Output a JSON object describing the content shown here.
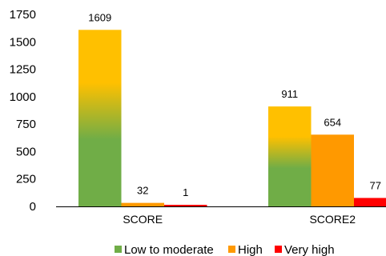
{
  "chart_data": {
    "type": "bar",
    "categories": [
      "SCORE",
      "SCORE2"
    ],
    "series": [
      {
        "name": "Low to moderate",
        "values": [
          1609,
          911
        ]
      },
      {
        "name": "High",
        "values": [
          32,
          654
        ]
      },
      {
        "name": "Very high",
        "values": [
          1,
          77
        ]
      }
    ],
    "data_labels": [
      [
        "1609",
        "911"
      ],
      [
        "32",
        "654"
      ],
      [
        "1",
        "77"
      ]
    ],
    "title": "",
    "xlabel": "",
    "ylabel": "",
    "ylim": [
      0,
      1750
    ],
    "yticks": [
      0,
      250,
      500,
      750,
      1000,
      1250,
      1500,
      1750
    ],
    "grid": false,
    "legend_position": "bottom"
  },
  "colors": {
    "low_to_moderate_top": "#FFC000",
    "low_to_moderate_bottom": "#70AD47",
    "high": "#FF9900",
    "very_high": "#FF0000",
    "axis": "#000000"
  }
}
